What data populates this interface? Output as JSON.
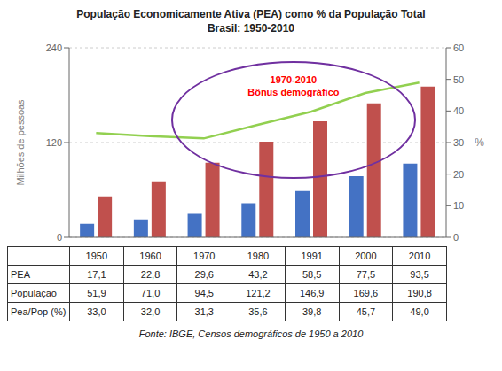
{
  "chart_data": {
    "type": "bar",
    "title": "População Economicamente Ativa (PEA) como % da População Total",
    "subtitle": "Brasil: 1950-2010",
    "categories": [
      1950,
      1960,
      1970,
      1980,
      1991,
      2000,
      2010
    ],
    "series": [
      {
        "name": "PEA",
        "type": "bar",
        "color": "#4472C4",
        "values": [
          17.1,
          22.8,
          29.6,
          43.2,
          58.5,
          77.5,
          93.5
        ],
        "value_labels": [
          "17,1",
          "22,8",
          "29,6",
          "43,2",
          "58,5",
          "77,5",
          "93,5"
        ]
      },
      {
        "name": "População",
        "type": "bar",
        "color": "#C0504D",
        "values": [
          51.9,
          71.0,
          94.5,
          121.2,
          146.9,
          169.6,
          190.8
        ],
        "value_labels": [
          "51,9",
          "71,0",
          "94,5",
          "121,2",
          "146,9",
          "169,6",
          "190,8"
        ]
      },
      {
        "name": "Pea/Pop (%)",
        "type": "line",
        "axis": "y2",
        "color": "#92D050",
        "values": [
          33.0,
          32.0,
          31.3,
          35.6,
          39.8,
          45.7,
          49.0
        ],
        "value_labels": [
          "33,0",
          "32,0",
          "31,3",
          "35,6",
          "39,8",
          "45,7",
          "49,0"
        ]
      }
    ],
    "ylabel": "Milhões de pessoas",
    "y2label": "%",
    "ylim": [
      0,
      240
    ],
    "yticks": [
      0,
      120,
      240
    ],
    "y2lim": [
      0,
      60
    ],
    "y2ticks": [
      0,
      10,
      20,
      30,
      40,
      50,
      60
    ],
    "grid": true,
    "tick_labels": "y",
    "annotations": [
      {
        "text": "1970-2010\nBônus demográfico",
        "color": "#FF0000",
        "edge_color": "#7030A0"
      }
    ],
    "source": "Fonte: IBGE, Censos demográficos de 1950 a 2010"
  }
}
